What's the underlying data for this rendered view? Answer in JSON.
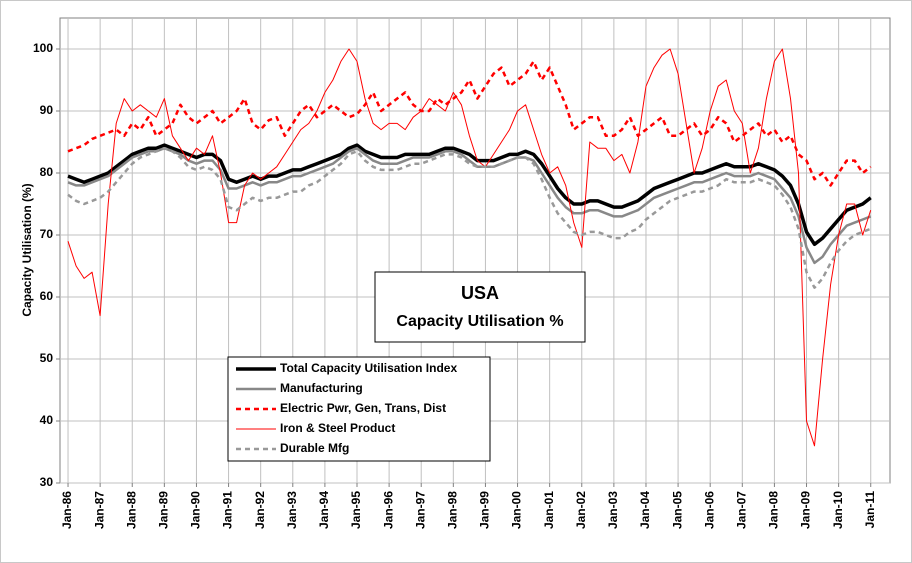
{
  "chart_data": {
    "type": "line",
    "title": "USA",
    "subtitle": "Capacity Utilisation %",
    "y_label": "Capacity Utilisation (%)",
    "x": [
      1986,
      1986.25,
      1986.5,
      1986.75,
      1987,
      1987.25,
      1987.5,
      1987.75,
      1988,
      1988.25,
      1988.5,
      1988.75,
      1989,
      1989.25,
      1989.5,
      1989.75,
      1990,
      1990.25,
      1990.5,
      1990.75,
      1991,
      1991.25,
      1991.5,
      1991.75,
      1992,
      1992.25,
      1992.5,
      1992.75,
      1993,
      1993.25,
      1993.5,
      1993.75,
      1994,
      1994.25,
      1994.5,
      1994.75,
      1995,
      1995.25,
      1995.5,
      1995.75,
      1996,
      1996.25,
      1996.5,
      1996.75,
      1997,
      1997.25,
      1997.5,
      1997.75,
      1998,
      1998.25,
      1998.5,
      1998.75,
      1999,
      1999.25,
      1999.5,
      1999.75,
      2000,
      2000.25,
      2000.5,
      2000.75,
      2001,
      2001.25,
      2001.5,
      2001.75,
      2002,
      2002.25,
      2002.5,
      2002.75,
      2003,
      2003.25,
      2003.5,
      2003.75,
      2004,
      2004.25,
      2004.5,
      2004.75,
      2005,
      2005.25,
      2005.5,
      2005.75,
      2006,
      2006.25,
      2006.5,
      2006.75,
      2007,
      2007.25,
      2007.5,
      2007.75,
      2008,
      2008.25,
      2008.5,
      2008.75,
      2009,
      2009.25,
      2009.5,
      2009.75,
      2010,
      2010.25,
      2010.5,
      2010.75,
      2011
    ],
    "series": [
      {
        "name": "Total Capacity Utilisation Index",
        "color": "#000000",
        "style": "solid",
        "width": 3.5,
        "values": [
          79.5,
          79,
          78.5,
          79,
          79.5,
          80,
          81,
          82,
          83,
          83.5,
          84,
          84,
          84.5,
          84,
          83.5,
          83,
          82.5,
          83,
          83,
          82,
          79,
          78.5,
          79,
          79.5,
          79,
          79.5,
          79.5,
          80,
          80.5,
          80.5,
          81,
          81.5,
          82,
          82.5,
          83,
          84,
          84.5,
          83.5,
          83,
          82.5,
          82.5,
          82.5,
          83,
          83,
          83,
          83,
          83.5,
          84,
          84,
          83.5,
          83,
          82,
          82,
          82,
          82.5,
          83,
          83,
          83.5,
          83,
          81.5,
          79.5,
          77.5,
          76,
          75,
          75,
          75.5,
          75.5,
          75,
          74.5,
          74.5,
          75,
          75.5,
          76.5,
          77.5,
          78,
          78.5,
          79,
          79.5,
          80,
          80,
          80.5,
          81,
          81.5,
          81,
          81,
          81,
          81.5,
          81,
          80.5,
          79.5,
          78,
          75,
          70.5,
          68.5,
          69.5,
          71,
          72.5,
          74,
          74.5,
          75,
          76
        ]
      },
      {
        "name": "Manufacturing",
        "color": "#888888",
        "style": "solid",
        "width": 2.5,
        "values": [
          78.5,
          78,
          78,
          78.5,
          79,
          79.5,
          80.5,
          81.5,
          82.5,
          83,
          83.5,
          83.5,
          84,
          83.5,
          83,
          82,
          81.5,
          82,
          82,
          80.5,
          77.5,
          77.5,
          78,
          78.5,
          78,
          78.5,
          78.5,
          79,
          79.5,
          79.5,
          80,
          80.5,
          81,
          81.5,
          82.5,
          83.5,
          84,
          83,
          82,
          81.5,
          81.5,
          81.5,
          82,
          82.5,
          82.5,
          82.5,
          83,
          83.5,
          83.5,
          83,
          82,
          81,
          81,
          81,
          81.5,
          82,
          82.5,
          82.5,
          82,
          80,
          78,
          76,
          74.5,
          73.5,
          73.5,
          74,
          74,
          73.5,
          73,
          73,
          73.5,
          74,
          75,
          76,
          76.5,
          77,
          77.5,
          78,
          78.5,
          78.5,
          79,
          79.5,
          80,
          79.5,
          79.5,
          79.5,
          80,
          79.5,
          79,
          77.5,
          76,
          73,
          68,
          65.5,
          66.5,
          68.5,
          70,
          71.5,
          72,
          72.5,
          73
        ]
      },
      {
        "name": "Electric Pwr, Gen, Trans, Dist",
        "color": "#ff0000",
        "style": "dashed",
        "width": 2.5,
        "values": [
          83.5,
          84,
          84.5,
          85.5,
          86,
          86.5,
          87,
          86,
          88,
          87,
          89,
          86,
          87,
          88,
          91,
          89,
          88,
          89,
          90,
          88,
          89,
          90,
          92,
          88,
          87,
          88.5,
          89,
          86,
          88,
          90,
          91,
          89,
          90,
          91,
          90,
          89,
          89.5,
          91,
          93,
          90,
          91,
          92,
          93,
          91,
          90,
          90,
          92,
          91,
          92,
          93,
          95,
          92,
          94,
          96,
          97,
          94,
          95,
          96,
          98,
          95,
          97,
          94,
          91,
          87,
          88,
          89,
          89,
          86,
          86,
          87,
          89,
          86,
          87,
          88,
          89,
          86,
          86,
          87,
          88,
          86,
          87,
          89,
          88,
          85,
          86,
          87,
          88,
          86,
          87,
          85,
          86,
          83,
          82,
          79,
          80,
          78,
          80,
          82,
          82,
          80,
          81
        ]
      },
      {
        "name": "Iron & Steel Product",
        "color": "#ff0000",
        "style": "solid",
        "width": 1,
        "values": [
          69,
          65,
          63,
          64,
          57,
          75,
          88,
          92,
          90,
          91,
          90,
          89,
          92,
          86,
          84,
          82,
          84,
          83,
          86,
          80,
          72,
          72,
          78,
          80,
          79,
          80,
          81,
          83,
          85,
          87,
          88,
          90,
          93,
          95,
          98,
          100,
          98,
          92,
          88,
          87,
          88,
          88,
          87,
          89,
          90,
          92,
          91,
          90,
          93,
          91,
          86,
          82,
          81,
          83,
          85,
          87,
          90,
          91,
          87,
          83,
          80,
          81,
          78,
          72,
          68,
          85,
          84,
          84,
          82,
          83,
          80,
          85,
          94,
          97,
          99,
          100,
          96,
          88,
          80,
          84,
          90,
          94,
          95,
          90,
          88,
          80,
          84,
          92,
          98,
          100,
          92,
          80,
          40,
          36,
          50,
          62,
          70,
          75,
          75,
          70,
          74
        ]
      },
      {
        "name": "Durable Mfg",
        "color": "#999999",
        "style": "dashed",
        "width": 2.5,
        "values": [
          76.5,
          75.5,
          75,
          75.5,
          76,
          77,
          78.5,
          80,
          81.5,
          82.5,
          83,
          83.5,
          84,
          83.5,
          82.5,
          81,
          80.5,
          81,
          80.5,
          79,
          74.5,
          74,
          75,
          76,
          75.5,
          76,
          76,
          76.5,
          77,
          77,
          78,
          78.5,
          79.5,
          80.5,
          81.5,
          83,
          83.5,
          82,
          81,
          80.5,
          80.5,
          80.5,
          81,
          81.5,
          81.5,
          82,
          82.5,
          83,
          83,
          82.5,
          81.5,
          81,
          81,
          81,
          81.5,
          82,
          82.5,
          82.5,
          81.5,
          79,
          76,
          73.5,
          72,
          70.5,
          70,
          70.5,
          70.5,
          70,
          69.5,
          69.5,
          70.5,
          71,
          72.5,
          73.5,
          74.5,
          75.5,
          76,
          76.5,
          77,
          77,
          77.5,
          78,
          79,
          78.5,
          78.5,
          78.5,
          79,
          78.5,
          78,
          76.5,
          74.5,
          71,
          64,
          61.5,
          63,
          65.5,
          67.5,
          69,
          70,
          70.5,
          71
        ]
      }
    ],
    "xlim": [
      1985.75,
      2011.6
    ],
    "ylim": [
      30,
      105
    ],
    "yticks": [
      30,
      40,
      50,
      60,
      70,
      80,
      90,
      100
    ],
    "xticks": [
      {
        "value": 1986,
        "label": "Jan-86"
      },
      {
        "value": 1987,
        "label": "Jan-87"
      },
      {
        "value": 1988,
        "label": "Jan-88"
      },
      {
        "value": 1989,
        "label": "Jan-89"
      },
      {
        "value": 1990,
        "label": "Jan-90"
      },
      {
        "value": 1991,
        "label": "Jan-91"
      },
      {
        "value": 1992,
        "label": "Jan-92"
      },
      {
        "value": 1993,
        "label": "Jan-93"
      },
      {
        "value": 1994,
        "label": "Jan-94"
      },
      {
        "value": 1995,
        "label": "Jan-95"
      },
      {
        "value": 1996,
        "label": "Jan-96"
      },
      {
        "value": 1997,
        "label": "Jan-97"
      },
      {
        "value": 1998,
        "label": "Jan-98"
      },
      {
        "value": 1999,
        "label": "Jan-99"
      },
      {
        "value": 2000,
        "label": "Jan-00"
      },
      {
        "value": 2001,
        "label": "Jan-01"
      },
      {
        "value": 2002,
        "label": "Jan-02"
      },
      {
        "value": 2003,
        "label": "Jan-03"
      },
      {
        "value": 2004,
        "label": "Jan-04"
      },
      {
        "value": 2005,
        "label": "Jan-05"
      },
      {
        "value": 2006,
        "label": "Jan-06"
      },
      {
        "value": 2007,
        "label": "Jan-07"
      },
      {
        "value": 2008,
        "label": "Jan-08"
      },
      {
        "value": 2009,
        "label": "Jan-09"
      },
      {
        "value": 2010,
        "label": "Jan-10"
      },
      {
        "value": 2011,
        "label": "Jan-11"
      }
    ],
    "grid": true
  }
}
